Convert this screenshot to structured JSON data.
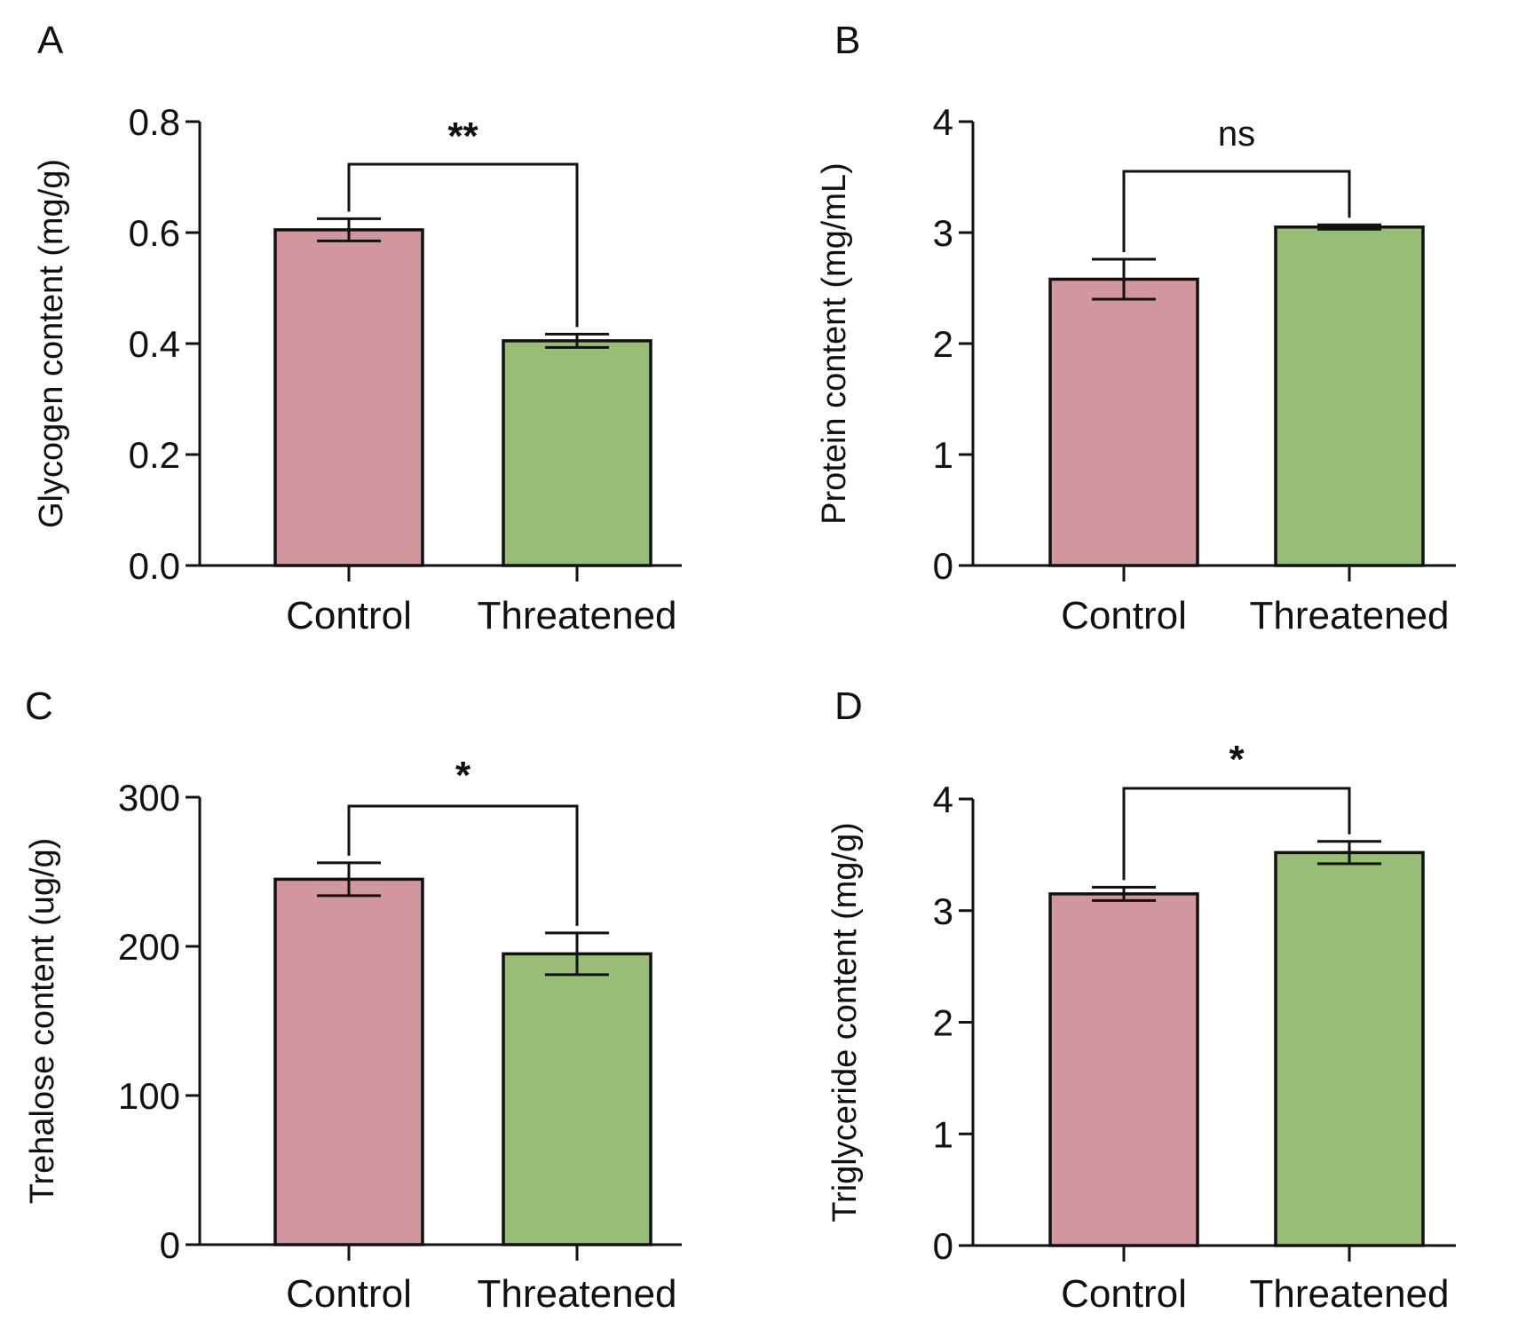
{
  "chart_data": [
    {
      "panel": "A",
      "type": "bar",
      "categories": [
        "Control",
        "Threatened"
      ],
      "values": [
        0.605,
        0.405
      ],
      "errors": [
        0.02,
        0.012
      ],
      "ylabel": "Glycogen content (mg/g)",
      "ylim": [
        0,
        0.8
      ],
      "yticks": [
        "0.0",
        "0.2",
        "0.4",
        "0.6",
        "0.8"
      ],
      "significance": "**",
      "colors": [
        "#d2979e",
        "#97bd76"
      ]
    },
    {
      "panel": "B",
      "type": "bar",
      "categories": [
        "Control",
        "Threatened"
      ],
      "values": [
        2.58,
        3.05
      ],
      "errors": [
        0.18,
        0.02
      ],
      "ylabel": "Protein content (mg/mL)",
      "ylim": [
        0,
        4
      ],
      "yticks": [
        "0",
        "1",
        "2",
        "3",
        "4"
      ],
      "significance": "ns",
      "colors": [
        "#d2979e",
        "#97bd76"
      ]
    },
    {
      "panel": "C",
      "type": "bar",
      "categories": [
        "Control",
        "Threatened"
      ],
      "values": [
        245,
        195
      ],
      "errors": [
        11,
        14
      ],
      "ylabel": "Trehalose content (ug/g)",
      "ylim": [
        0,
        300
      ],
      "yticks": [
        "0",
        "100",
        "200",
        "300"
      ],
      "significance": "*",
      "colors": [
        "#d2979e",
        "#97bd76"
      ]
    },
    {
      "panel": "D",
      "type": "bar",
      "categories": [
        "Control",
        "Threatened"
      ],
      "values": [
        3.15,
        3.52
      ],
      "errors": [
        0.06,
        0.1
      ],
      "ylabel": "Triglyceride content (mg/g)",
      "ylim": [
        0,
        4
      ],
      "yticks": [
        "0",
        "1",
        "2",
        "3",
        "4"
      ],
      "significance": "*",
      "colors": [
        "#d2979e",
        "#97bd76"
      ]
    }
  ]
}
